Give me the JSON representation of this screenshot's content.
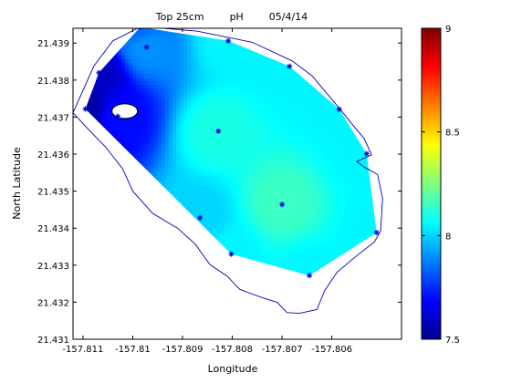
{
  "chart_data": {
    "type": "heatmap",
    "title": "Top 25cm        pH        05/4/14",
    "xlabel": "Longitude",
    "ylabel": "North Latitude",
    "xlim": [
      -157.8112,
      -157.8046
    ],
    "ylim": [
      21.431,
      21.4394
    ],
    "xticks": [
      -157.811,
      -157.81,
      -157.809,
      -157.808,
      -157.807,
      -157.806
    ],
    "xtick_labels": [
      "-157.811",
      "-157.81",
      "-157.809",
      "-157.808",
      "-157.807",
      "-157.806"
    ],
    "yticks": [
      21.431,
      21.432,
      21.433,
      21.434,
      21.435,
      21.436,
      21.437,
      21.438,
      21.439
    ],
    "ytick_labels": [
      "21.431",
      "21.432",
      "21.433",
      "21.434",
      "21.435",
      "21.436",
      "21.437",
      "21.438",
      "21.439"
    ],
    "colorbar": {
      "range": [
        7.5,
        9
      ],
      "ticks": [
        7.5,
        8,
        8.5,
        9
      ],
      "tick_labels": [
        "7.5",
        "8",
        "8.5",
        "9"
      ],
      "colormap": "jet"
    },
    "sample_points": [
      {
        "lon": -157.81095,
        "lat": 21.43722,
        "ph": 7.55
      },
      {
        "lon": -157.81068,
        "lat": 21.4382,
        "ph": 7.6
      },
      {
        "lon": -157.8103,
        "lat": 21.43702,
        "ph": 7.7
      },
      {
        "lon": -157.80985,
        "lat": 21.43943,
        "ph": 7.85
      },
      {
        "lon": -157.80972,
        "lat": 21.43889,
        "ph": 7.9
      },
      {
        "lon": -157.80865,
        "lat": 21.43428,
        "ph": 8.0
      },
      {
        "lon": -157.80828,
        "lat": 21.43662,
        "ph": 8.1
      },
      {
        "lon": -157.80808,
        "lat": 21.43906,
        "ph": 8.05
      },
      {
        "lon": -157.80802,
        "lat": 21.4333,
        "ph": 8.05
      },
      {
        "lon": -157.807,
        "lat": 21.43464,
        "ph": 8.15
      },
      {
        "lon": -157.80685,
        "lat": 21.43837,
        "ph": 8.05
      },
      {
        "lon": -157.80645,
        "lat": 21.43272,
        "ph": 8.05
      },
      {
        "lon": -157.80585,
        "lat": 21.43721,
        "ph": 8.05
      },
      {
        "lon": -157.8053,
        "lat": 21.43601,
        "ph": 8.05
      },
      {
        "lon": -157.8051,
        "lat": 21.43388,
        "ph": 8.05
      }
    ],
    "grid": false,
    "background": "#ffffff",
    "coastline_color": "#0000b4",
    "marker_color": "#0000cc"
  }
}
